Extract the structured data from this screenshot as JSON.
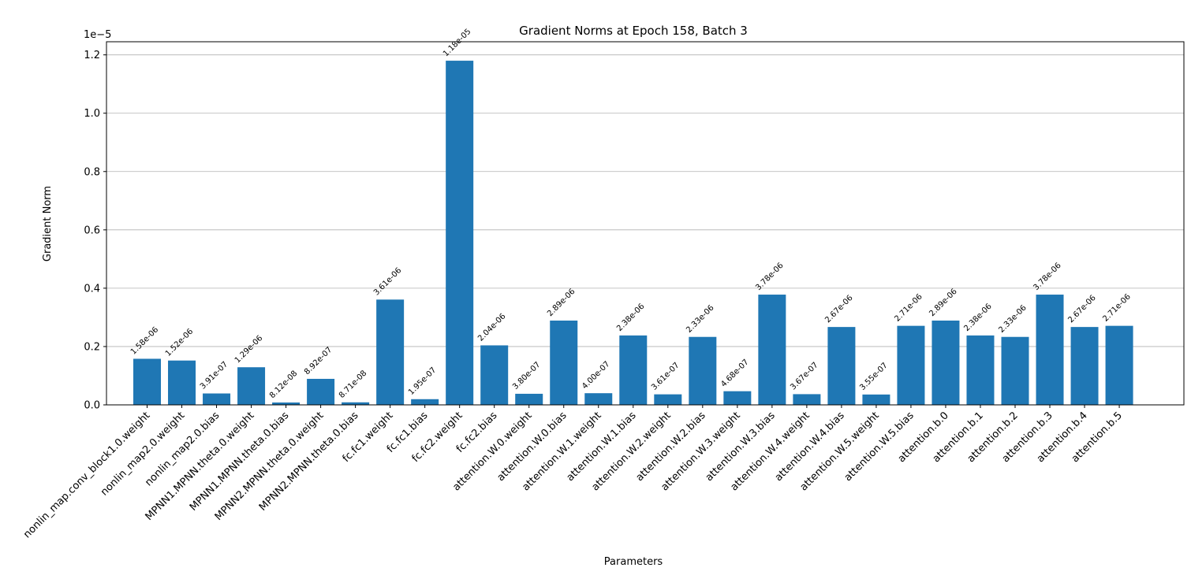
{
  "chart_data": {
    "type": "bar",
    "title": "Gradient Norms at Epoch 158, Batch 3",
    "xlabel": "Parameters",
    "ylabel": "Gradient Norm",
    "y_offset_label": "1e−5",
    "ylim": [
      0,
      1.245
    ],
    "yticks": [
      0.0,
      0.2,
      0.4,
      0.6,
      0.8,
      1.0,
      1.2
    ],
    "ytick_labels": [
      "0.0",
      "0.2",
      "0.4",
      "0.6",
      "0.8",
      "1.0",
      "1.2"
    ],
    "grid": "horizontal",
    "bar_color": "#1f77b4",
    "categories": [
      "nonlin_map.conv_block1.0.weight",
      "nonlin_map2.0.weight",
      "nonlin_map2.0.bias",
      "MPNN1.MPNN.theta.0.weight",
      "MPNN1.MPNN.theta.0.bias",
      "MPNN2.MPNN.theta.0.weight",
      "MPNN2.MPNN.theta.0.bias",
      "fc.fc1.weight",
      "fc.fc1.bias",
      "fc.fc2.weight",
      "fc.fc2.bias",
      "attention.W.0.weight",
      "attention.W.0.bias",
      "attention.W.1.weight",
      "attention.W.1.bias",
      "attention.W.2.weight",
      "attention.W.2.bias",
      "attention.W.3.weight",
      "attention.W.3.bias",
      "attention.W.4.weight",
      "attention.W.4.bias",
      "attention.W.5.weight",
      "attention.W.5.bias",
      "attention.b.0",
      "attention.b.1",
      "attention.b.2",
      "attention.b.3",
      "attention.b.4",
      "attention.b.5"
    ],
    "values": [
      0.158,
      0.152,
      0.0391,
      0.129,
      0.00812,
      0.0892,
      0.00871,
      0.361,
      0.0195,
      1.18,
      0.204,
      0.038,
      0.289,
      0.04,
      0.238,
      0.0361,
      0.233,
      0.0468,
      0.378,
      0.0367,
      0.267,
      0.0355,
      0.271,
      0.289,
      0.238,
      0.233,
      0.378,
      0.267,
      0.271
    ],
    "data_labels": [
      "1.58e-06",
      "1.52e-06",
      "3.91e-07",
      "1.29e-06",
      "8.12e-08",
      "8.92e-07",
      "8.71e-08",
      "3.61e-06",
      "1.95e-07",
      "1.18e-05",
      "2.04e-06",
      "3.80e-07",
      "2.89e-06",
      "4.00e-07",
      "2.38e-06",
      "3.61e-07",
      "2.33e-06",
      "4.68e-07",
      "3.78e-06",
      "3.67e-07",
      "2.67e-06",
      "3.55e-07",
      "2.71e-06",
      "2.89e-06",
      "2.38e-06",
      "2.33e-06",
      "3.78e-06",
      "2.67e-06",
      "2.71e-06"
    ]
  }
}
